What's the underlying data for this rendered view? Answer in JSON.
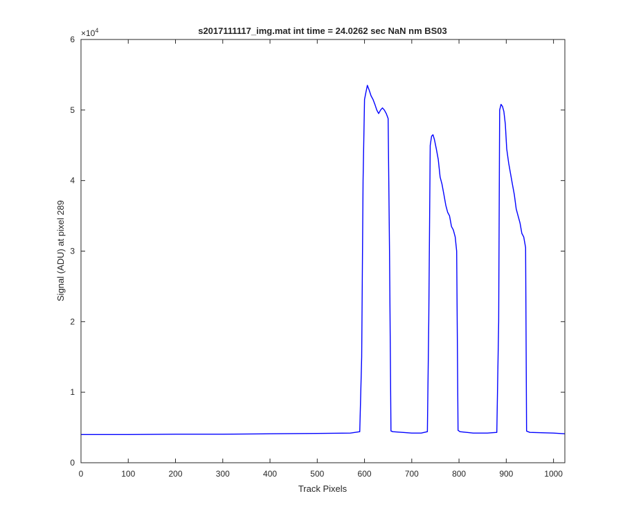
{
  "chart_data": {
    "type": "line",
    "title": "s2017111117_img.mat int time = 24.0262 sec  NaN nm BS03",
    "xlabel": "Track Pixels",
    "ylabel": "Signal (ADU) at pixel 289",
    "xlim": [
      0,
      1024
    ],
    "ylim": [
      0,
      60000
    ],
    "x_ticks": [
      0,
      100,
      200,
      300,
      400,
      500,
      600,
      700,
      800,
      900,
      1000
    ],
    "y_ticks": [
      0,
      10000,
      20000,
      30000,
      40000,
      50000,
      60000
    ],
    "y_tick_labels": [
      "0",
      "1",
      "2",
      "3",
      "4",
      "5",
      "6"
    ],
    "y_exponent_label": "×10",
    "y_exponent_power": "4",
    "grid": false,
    "line_color": "#0000ff",
    "series": [
      {
        "x": [
          0,
          100,
          200,
          300,
          400,
          500,
          570,
          590,
          594,
          597,
          600,
          603,
          606,
          610,
          614,
          618,
          622,
          626,
          630,
          634,
          638,
          642,
          646,
          650,
          653,
          656,
          660,
          680,
          700,
          720,
          733,
          736,
          739,
          742,
          745,
          748,
          752,
          756,
          760,
          764,
          768,
          772,
          776,
          780,
          784,
          788,
          792,
          795,
          798,
          802,
          830,
          860,
          880,
          884,
          886,
          889,
          892,
          895,
          898,
          901,
          905,
          909,
          913,
          917,
          921,
          925,
          929,
          933,
          937,
          941,
          943,
          946,
          950,
          1000,
          1024
        ],
        "y": [
          4000,
          4000,
          4050,
          4050,
          4100,
          4150,
          4200,
          4400,
          15000,
          40000,
          51500,
          52500,
          53500,
          52800,
          52000,
          51500,
          50800,
          50000,
          49500,
          50000,
          50300,
          50000,
          49500,
          48800,
          30000,
          4500,
          4400,
          4300,
          4200,
          4200,
          4400,
          20000,
          45000,
          46300,
          46500,
          45800,
          44500,
          43000,
          40500,
          39500,
          38000,
          36500,
          35500,
          35000,
          33500,
          33000,
          32000,
          30000,
          4600,
          4400,
          4200,
          4200,
          4300,
          20000,
          50000,
          50800,
          50500,
          49800,
          48000,
          44500,
          42500,
          41000,
          39500,
          38000,
          36000,
          35000,
          34000,
          32500,
          32000,
          30500,
          4500,
          4400,
          4300,
          4200,
          4100
        ]
      }
    ]
  }
}
